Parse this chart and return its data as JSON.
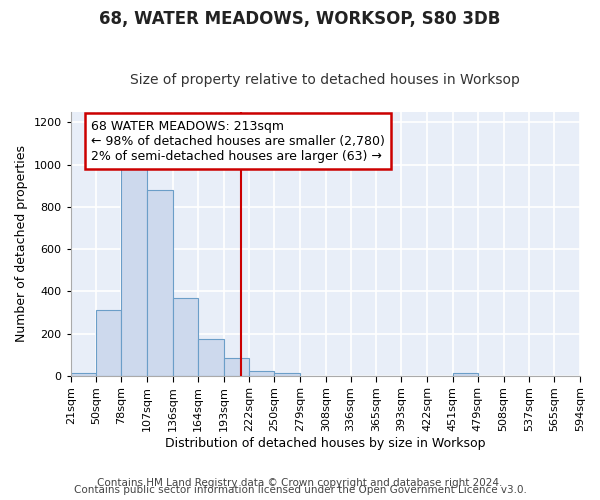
{
  "title": "68, WATER MEADOWS, WORKSOP, S80 3DB",
  "subtitle": "Size of property relative to detached houses in Worksop",
  "xlabel": "Distribution of detached houses by size in Worksop",
  "ylabel": "Number of detached properties",
  "footnote1": "Contains HM Land Registry data © Crown copyright and database right 2024.",
  "footnote2": "Contains public sector information licensed under the Open Government Licence v3.0.",
  "bin_edges": [
    21,
    50,
    78,
    107,
    136,
    164,
    193,
    222,
    250,
    279,
    308,
    336,
    365,
    393,
    422,
    451,
    479,
    508,
    537,
    565,
    594
  ],
  "bar_heights": [
    15,
    310,
    980,
    880,
    370,
    175,
    85,
    25,
    15,
    0,
    0,
    0,
    0,
    0,
    0,
    15,
    0,
    0,
    0,
    0
  ],
  "bar_color": "#cdd9ed",
  "bar_edge_color": "#6b9ec8",
  "vline_x": 213,
  "vline_color": "#cc0000",
  "annotation_title": "68 WATER MEADOWS: 213sqm",
  "annotation_line2": "← 98% of detached houses are smaller (2,780)",
  "annotation_line3": "2% of semi-detached houses are larger (63) →",
  "annotation_box_color": "#cc0000",
  "ylim": [
    0,
    1250
  ],
  "yticks": [
    0,
    200,
    400,
    600,
    800,
    1000,
    1200
  ],
  "background_color": "#e8eef8",
  "grid_color": "#ffffff",
  "fig_background": "#ffffff",
  "title_fontsize": 12,
  "subtitle_fontsize": 10,
  "axis_label_fontsize": 9,
  "tick_fontsize": 8,
  "annotation_fontsize": 9,
  "footnote_fontsize": 7.5
}
